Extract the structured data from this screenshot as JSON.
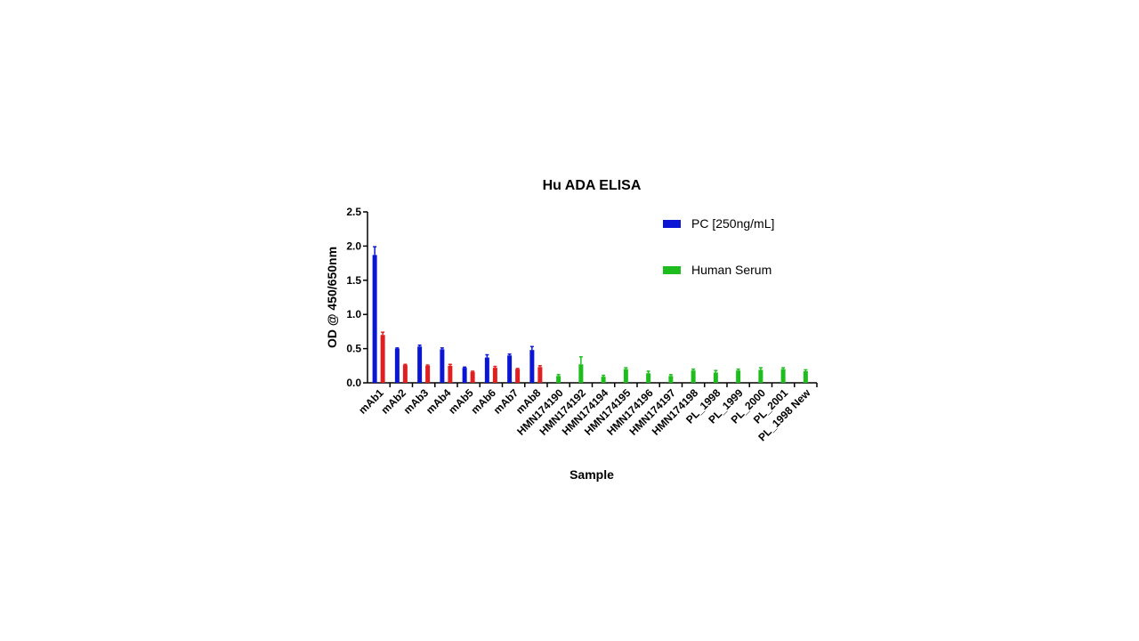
{
  "chart_data": {
    "type": "bar",
    "title": "Hu ADA ELISA",
    "xlabel": "Sample",
    "ylabel": "OD @ 450/650nm",
    "ylim": [
      0,
      2.5
    ],
    "yticks": [
      "0.0",
      "0.5",
      "1.0",
      "1.5",
      "2.0",
      "2.5"
    ],
    "legend_position": "top-right",
    "categories": [
      "mAb1",
      "mAb2",
      "mAb3",
      "mAb4",
      "mAb5",
      "mAb6",
      "mAb7",
      "mAb8",
      "HMN174190",
      "HMN174192",
      "HMN174194",
      "HMN174195",
      "HMN174196",
      "HMN174197",
      "HMN174198",
      "PL_1998",
      "PL_1999",
      "PL_2000",
      "PL_2001",
      "PL_1998 New"
    ],
    "series": [
      {
        "name": "PC [250ng/mL]",
        "color": "#0a16d4",
        "values": [
          1.87,
          0.5,
          0.53,
          0.49,
          0.22,
          0.37,
          0.4,
          0.48,
          null,
          null,
          null,
          null,
          null,
          null,
          null,
          null,
          null,
          null,
          null,
          null
        ],
        "errors": [
          0.12,
          0.01,
          0.02,
          0.02,
          0.01,
          0.04,
          0.02,
          0.05,
          null,
          null,
          null,
          null,
          null,
          null,
          null,
          null,
          null,
          null,
          null,
          null
        ]
      },
      {
        "name": "",
        "color": "#e02020",
        "values": [
          0.7,
          0.26,
          0.25,
          0.25,
          0.16,
          0.22,
          0.2,
          0.23,
          null,
          null,
          null,
          null,
          null,
          null,
          null,
          null,
          null,
          null,
          null,
          null
        ],
        "errors": [
          0.04,
          0.01,
          0.01,
          0.02,
          0.01,
          0.02,
          0.01,
          0.02,
          null,
          null,
          null,
          null,
          null,
          null,
          null,
          null,
          null,
          null,
          null,
          null
        ]
      },
      {
        "name": "Human Serum",
        "color": "#1ebd1e",
        "values": [
          null,
          null,
          null,
          null,
          null,
          null,
          null,
          null,
          0.1,
          0.27,
          0.09,
          0.2,
          0.14,
          0.1,
          0.18,
          0.15,
          0.18,
          0.19,
          0.2,
          0.17
        ],
        "errors": [
          null,
          null,
          null,
          null,
          null,
          null,
          null,
          null,
          0.02,
          0.11,
          0.02,
          0.02,
          0.03,
          0.02,
          0.02,
          0.03,
          0.02,
          0.03,
          0.02,
          0.02
        ]
      }
    ]
  }
}
